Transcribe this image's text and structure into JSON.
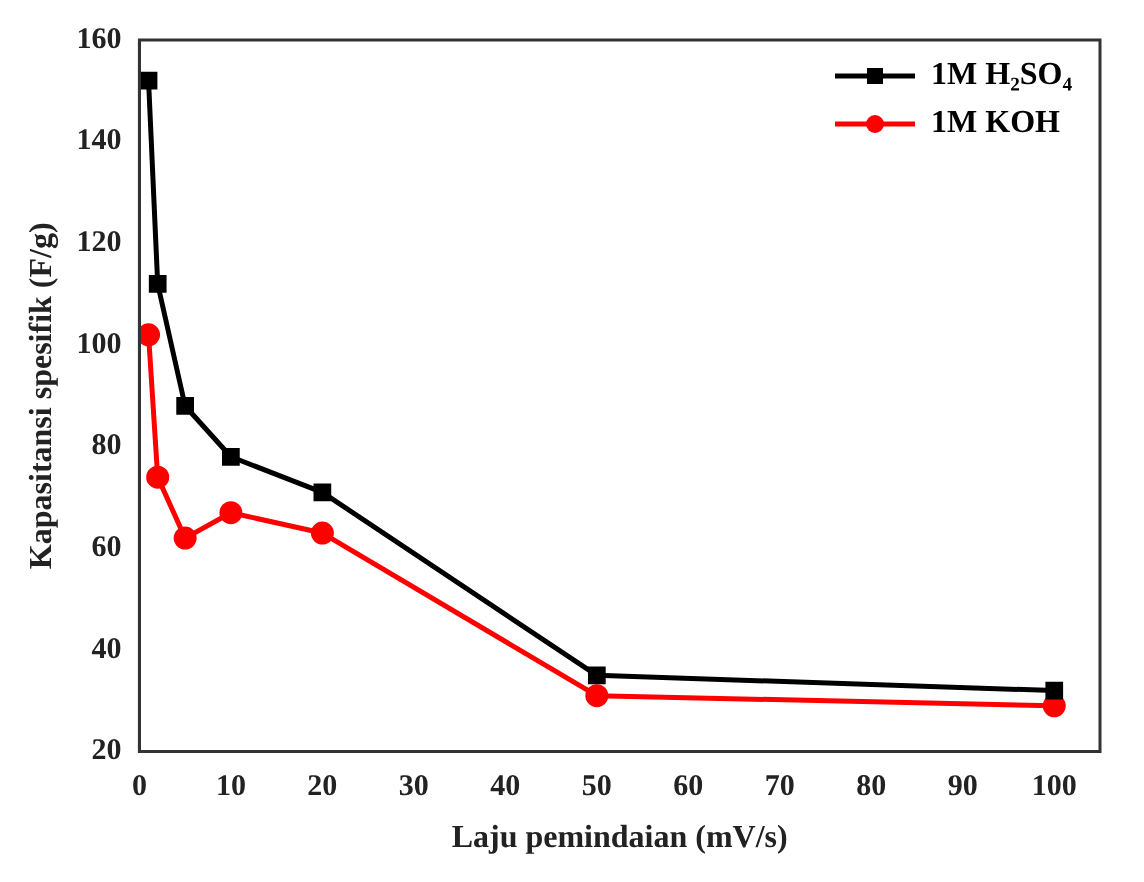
{
  "chart_data": {
    "type": "line",
    "xlabel": "Laju pemindaian (mV/s)",
    "ylabel": "Kapasitansi spesifik (F/g)",
    "x": [
      1,
      2,
      5,
      10,
      20,
      50,
      100
    ],
    "series": [
      {
        "name": "1M H₂SO₄",
        "color": "#000000",
        "marker": "square",
        "values": [
          152,
          112,
          88,
          78,
          71,
          35,
          32
        ]
      },
      {
        "name": "1M KOH",
        "color": "#ff0000",
        "marker": "circle",
        "values": [
          102,
          74,
          62,
          67,
          63,
          31,
          29
        ]
      }
    ],
    "xlim": [
      0,
      105
    ],
    "xticks": [
      0,
      10,
      20,
      30,
      40,
      50,
      60,
      70,
      80,
      90,
      100
    ],
    "ylim": [
      20,
      160
    ],
    "yticks": [
      20,
      40,
      60,
      80,
      100,
      120,
      140,
      160
    ],
    "grid": false,
    "legend": "top right",
    "line_style": "solid"
  }
}
